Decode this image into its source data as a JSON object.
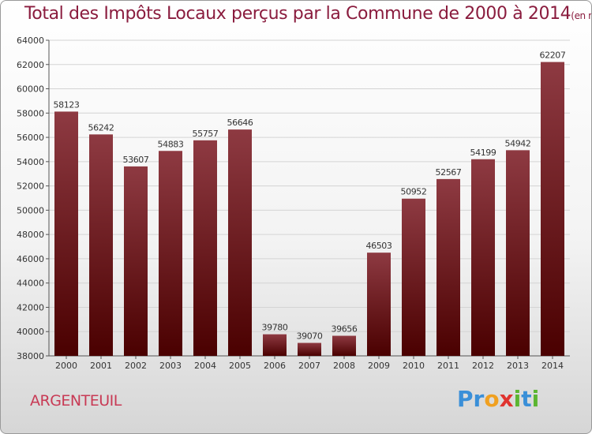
{
  "title": "Total des Impôts Locaux perçus par la Commune de 2000 à 2014",
  "title_unit": "(en milliers d'€)",
  "commune": "ARGENTEUIL",
  "logo": {
    "text": "Proxiti",
    "letters": [
      {
        "ch": "P",
        "color": "#3a8fd8"
      },
      {
        "ch": "r",
        "color": "#3a8fd8"
      },
      {
        "ch": "o",
        "color": "#f0a020"
      },
      {
        "ch": "x",
        "color": "#e0332f"
      },
      {
        "ch": "i",
        "color": "#5bb531"
      },
      {
        "ch": "t",
        "color": "#3a8fd8"
      },
      {
        "ch": "i",
        "color": "#5bb531"
      }
    ]
  },
  "colors": {
    "bar_top": "#8e3a42",
    "bar_bottom": "#4a0000",
    "title": "#8a1c3e"
  },
  "chart_data": {
    "type": "bar",
    "categories": [
      "2000",
      "2001",
      "2002",
      "2003",
      "2004",
      "2005",
      "2006",
      "2007",
      "2008",
      "2009",
      "2010",
      "2011",
      "2012",
      "2013",
      "2014"
    ],
    "values": [
      58123,
      56242,
      53607,
      54883,
      55757,
      56646,
      39780,
      39070,
      39656,
      46503,
      50952,
      52567,
      54199,
      54942,
      62207
    ],
    "ylim": [
      38000,
      64000
    ],
    "yticks": [
      38000,
      40000,
      42000,
      44000,
      46000,
      48000,
      50000,
      52000,
      54000,
      56000,
      58000,
      60000,
      62000,
      64000
    ],
    "grid": true,
    "data_labels": true
  }
}
